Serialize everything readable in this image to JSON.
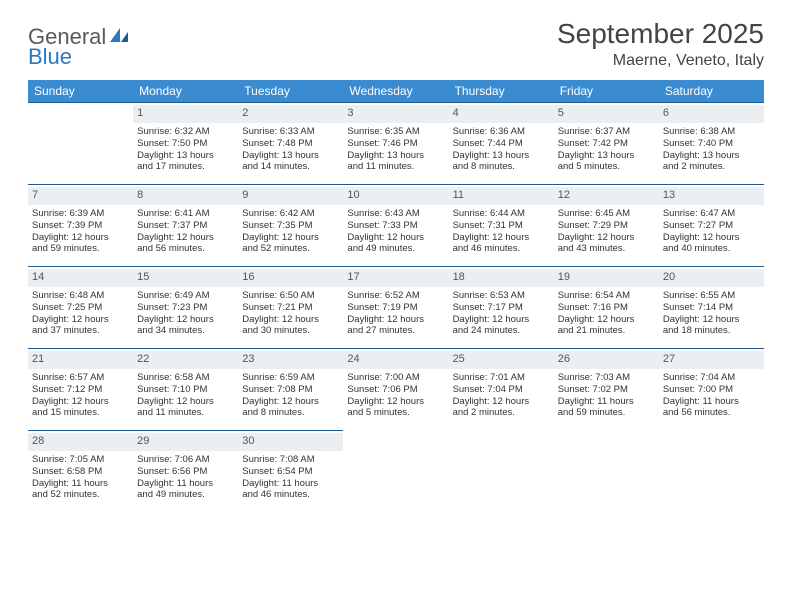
{
  "brand": {
    "part1": "General",
    "part2": "Blue"
  },
  "title": "September 2025",
  "location": "Maerne, Veneto, Italy",
  "colors": {
    "header_bg": "#3b8bd0",
    "header_text": "#ffffff",
    "cell_border": "#1e5a8e",
    "daynum_bg": "#eceff1",
    "brand_blue": "#2b78c2"
  },
  "daysOfWeek": [
    "Sunday",
    "Monday",
    "Tuesday",
    "Wednesday",
    "Thursday",
    "Friday",
    "Saturday"
  ],
  "firstDayOffset": 1,
  "days": [
    {
      "n": 1,
      "sr": "6:32 AM",
      "ss": "7:50 PM",
      "dl": "13 hours and 17 minutes."
    },
    {
      "n": 2,
      "sr": "6:33 AM",
      "ss": "7:48 PM",
      "dl": "13 hours and 14 minutes."
    },
    {
      "n": 3,
      "sr": "6:35 AM",
      "ss": "7:46 PM",
      "dl": "13 hours and 11 minutes."
    },
    {
      "n": 4,
      "sr": "6:36 AM",
      "ss": "7:44 PM",
      "dl": "13 hours and 8 minutes."
    },
    {
      "n": 5,
      "sr": "6:37 AM",
      "ss": "7:42 PM",
      "dl": "13 hours and 5 minutes."
    },
    {
      "n": 6,
      "sr": "6:38 AM",
      "ss": "7:40 PM",
      "dl": "13 hours and 2 minutes."
    },
    {
      "n": 7,
      "sr": "6:39 AM",
      "ss": "7:39 PM",
      "dl": "12 hours and 59 minutes."
    },
    {
      "n": 8,
      "sr": "6:41 AM",
      "ss": "7:37 PM",
      "dl": "12 hours and 56 minutes."
    },
    {
      "n": 9,
      "sr": "6:42 AM",
      "ss": "7:35 PM",
      "dl": "12 hours and 52 minutes."
    },
    {
      "n": 10,
      "sr": "6:43 AM",
      "ss": "7:33 PM",
      "dl": "12 hours and 49 minutes."
    },
    {
      "n": 11,
      "sr": "6:44 AM",
      "ss": "7:31 PM",
      "dl": "12 hours and 46 minutes."
    },
    {
      "n": 12,
      "sr": "6:45 AM",
      "ss": "7:29 PM",
      "dl": "12 hours and 43 minutes."
    },
    {
      "n": 13,
      "sr": "6:47 AM",
      "ss": "7:27 PM",
      "dl": "12 hours and 40 minutes."
    },
    {
      "n": 14,
      "sr": "6:48 AM",
      "ss": "7:25 PM",
      "dl": "12 hours and 37 minutes."
    },
    {
      "n": 15,
      "sr": "6:49 AM",
      "ss": "7:23 PM",
      "dl": "12 hours and 34 minutes."
    },
    {
      "n": 16,
      "sr": "6:50 AM",
      "ss": "7:21 PM",
      "dl": "12 hours and 30 minutes."
    },
    {
      "n": 17,
      "sr": "6:52 AM",
      "ss": "7:19 PM",
      "dl": "12 hours and 27 minutes."
    },
    {
      "n": 18,
      "sr": "6:53 AM",
      "ss": "7:17 PM",
      "dl": "12 hours and 24 minutes."
    },
    {
      "n": 19,
      "sr": "6:54 AM",
      "ss": "7:16 PM",
      "dl": "12 hours and 21 minutes."
    },
    {
      "n": 20,
      "sr": "6:55 AM",
      "ss": "7:14 PM",
      "dl": "12 hours and 18 minutes."
    },
    {
      "n": 21,
      "sr": "6:57 AM",
      "ss": "7:12 PM",
      "dl": "12 hours and 15 minutes."
    },
    {
      "n": 22,
      "sr": "6:58 AM",
      "ss": "7:10 PM",
      "dl": "12 hours and 11 minutes."
    },
    {
      "n": 23,
      "sr": "6:59 AM",
      "ss": "7:08 PM",
      "dl": "12 hours and 8 minutes."
    },
    {
      "n": 24,
      "sr": "7:00 AM",
      "ss": "7:06 PM",
      "dl": "12 hours and 5 minutes."
    },
    {
      "n": 25,
      "sr": "7:01 AM",
      "ss": "7:04 PM",
      "dl": "12 hours and 2 minutes."
    },
    {
      "n": 26,
      "sr": "7:03 AM",
      "ss": "7:02 PM",
      "dl": "11 hours and 59 minutes."
    },
    {
      "n": 27,
      "sr": "7:04 AM",
      "ss": "7:00 PM",
      "dl": "11 hours and 56 minutes."
    },
    {
      "n": 28,
      "sr": "7:05 AM",
      "ss": "6:58 PM",
      "dl": "11 hours and 52 minutes."
    },
    {
      "n": 29,
      "sr": "7:06 AM",
      "ss": "6:56 PM",
      "dl": "11 hours and 49 minutes."
    },
    {
      "n": 30,
      "sr": "7:08 AM",
      "ss": "6:54 PM",
      "dl": "11 hours and 46 minutes."
    }
  ],
  "labels": {
    "sunrise": "Sunrise:",
    "sunset": "Sunset:",
    "daylight": "Daylight:"
  }
}
